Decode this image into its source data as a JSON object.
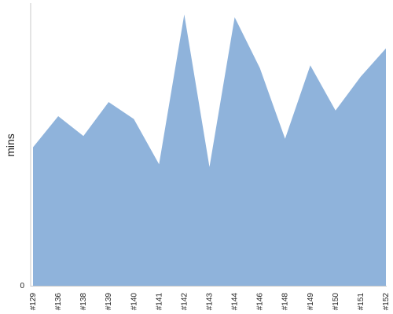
{
  "chart_data": {
    "type": "area",
    "title": "",
    "xlabel": "",
    "ylabel": "mins",
    "categories": [
      "#129",
      "#136",
      "#138",
      "#139",
      "#140",
      "#141",
      "#142",
      "#143",
      "#144",
      "#146",
      "#148",
      "#149",
      "#150",
      "#151",
      "#152"
    ],
    "series": [
      {
        "values": [
          49,
          60,
          53,
          65,
          59,
          43,
          96,
          42,
          95,
          77,
          52,
          78,
          62,
          74,
          84
        ]
      }
    ],
    "yticks": [
      0
    ],
    "ylim": [
      0,
      100
    ],
    "grid": false,
    "legend": "none",
    "colors": {
      "area": "#8fb3db",
      "axis": "#c8c8c8"
    }
  }
}
